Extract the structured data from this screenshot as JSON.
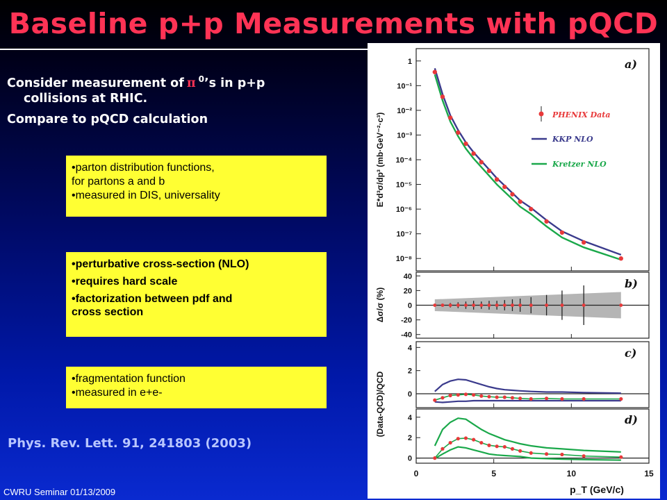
{
  "slide": {
    "title": "Baseline p+p Measurements with pQCD",
    "intro": {
      "line1_pre": "Consider measurement of",
      "pi_symbol": "π",
      "superscript": "0",
      "line1_post": "’s in p+p",
      "line2": "collisions at RHIC.",
      "line3": "Compare to pQCD calculation"
    },
    "box_pdf": {
      "item1a": "•parton distribution functions,",
      "item1b": "for partons a and b",
      "item2": "•measured in DIS, universality"
    },
    "box_xsec": {
      "item1": "•perturbative cross-section (NLO)",
      "item2": "•requires hard scale",
      "item3a": "•factorization between pdf and",
      "item3b": "cross section"
    },
    "box_frag": {
      "item1": "•fragmentation function",
      "item2": "•measured in e+e-"
    },
    "citation": "Phys. Rev. Lett. 91, 241803 (2003)",
    "footer": "CWRU Seminar 01/13/2009",
    "colors": {
      "title": "#ff3355",
      "box": "#ffff33",
      "citation": "#b8c6ff",
      "data": "#e8393a",
      "kkp": "#3a3a8c",
      "kretzer": "#1aa84a"
    }
  },
  "chart_data": [
    {
      "type": "scatter",
      "panel_label": "a)",
      "ylabel": "E*d³σ/dp³ (mb·GeV⁻²·c³)",
      "y_ticks": [
        "1",
        "10⁻¹",
        "10⁻²",
        "10⁻³",
        "10⁻⁴",
        "10⁻⁵",
        "10⁻⁶",
        "10⁻⁷",
        "10⁻⁸"
      ],
      "log_y": true,
      "ylim_exp": [
        -8.5,
        0.5
      ],
      "xlim": [
        0,
        15
      ],
      "legend": [
        "PHENIX Data",
        "KKP NLO",
        "Kretzer NLO"
      ],
      "legend_position": "top-right",
      "x": [
        1.2,
        1.7,
        2.2,
        2.7,
        3.2,
        3.7,
        4.2,
        4.7,
        5.2,
        5.7,
        6.2,
        6.7,
        7.4,
        8.4,
        9.4,
        10.8,
        13.2
      ],
      "series": [
        {
          "name": "PHENIX Data",
          "log10_values": [
            -0.45,
            -1.45,
            -2.3,
            -2.9,
            -3.35,
            -3.75,
            -4.1,
            -4.45,
            -4.8,
            -5.1,
            -5.4,
            -5.7,
            -6.0,
            -6.5,
            -6.95,
            -7.35,
            -8.0
          ]
        },
        {
          "name": "KKP NLO",
          "log10_values": [
            -0.3,
            -1.35,
            -2.2,
            -2.8,
            -3.3,
            -3.7,
            -4.05,
            -4.4,
            -4.75,
            -5.05,
            -5.35,
            -5.65,
            -5.95,
            -6.45,
            -6.9,
            -7.3,
            -7.85
          ]
        },
        {
          "name": "Kretzer NLO",
          "log10_values": [
            -0.55,
            -1.6,
            -2.45,
            -3.05,
            -3.55,
            -3.95,
            -4.3,
            -4.65,
            -5.0,
            -5.3,
            -5.6,
            -5.9,
            -6.2,
            -6.7,
            -7.15,
            -7.55,
            -8.05
          ]
        }
      ]
    },
    {
      "type": "scatter",
      "panel_label": "b)",
      "ylabel": "Δσ/σ (%)",
      "y_ticks": [
        "40",
        "20",
        "0",
        "-20",
        "-40"
      ],
      "ylim": [
        -45,
        45
      ],
      "x": [
        1.2,
        1.7,
        2.2,
        2.7,
        3.2,
        3.7,
        4.2,
        4.7,
        5.2,
        5.7,
        6.2,
        6.7,
        7.4,
        8.4,
        9.4,
        10.8,
        13.2
      ],
      "values": [
        0,
        0,
        0,
        0,
        0,
        0,
        0,
        0,
        0,
        0,
        0,
        0,
        0,
        0,
        0,
        0,
        0
      ],
      "errors": [
        2,
        2,
        3,
        4,
        5,
        6,
        5,
        6,
        6,
        7,
        8,
        9,
        11,
        14,
        20,
        27,
        0
      ]
    },
    {
      "type": "line",
      "panel_label": "c)",
      "ylabel": "(Data-QCD)/QCD",
      "y_ticks": [
        "4",
        "2",
        "0"
      ],
      "ylim": [
        -1.2,
        4.5
      ],
      "x": [
        1.2,
        1.7,
        2.2,
        2.7,
        3.2,
        3.7,
        4.2,
        4.7,
        5.2,
        5.7,
        6.2,
        6.7,
        7.4,
        8.4,
        9.4,
        10.8,
        13.2
      ],
      "series": [
        {
          "name": "PHENIX Data",
          "values": [
            -0.55,
            -0.35,
            -0.15,
            -0.1,
            -0.05,
            -0.1,
            -0.2,
            -0.25,
            -0.3,
            -0.3,
            -0.35,
            -0.4,
            -0.45,
            -0.4,
            -0.45,
            -0.45,
            -0.45
          ]
        },
        {
          "name": "KKP NLO",
          "values": [
            0.2,
            0.8,
            1.1,
            1.25,
            1.2,
            1.0,
            0.8,
            0.6,
            0.45,
            0.35,
            0.3,
            0.25,
            0.2,
            0.15,
            0.15,
            0.1,
            0.05
          ]
        },
        {
          "name": "KKP NLO",
          "values": [
            -0.7,
            -0.75,
            -0.7,
            -0.65,
            -0.65,
            -0.6,
            -0.6,
            -0.6,
            -0.6,
            -0.6,
            -0.6,
            -0.6,
            -0.6,
            -0.6,
            -0.6,
            -0.6,
            -0.6
          ]
        }
      ]
    },
    {
      "type": "line",
      "panel_label": "d)",
      "ylabel": "(Data-QCD)/QCD",
      "y_ticks": [
        "4",
        "2",
        "0"
      ],
      "ylim": [
        -0.5,
        4.8
      ],
      "xlabel": "p_T (GeV/c)",
      "x_ticks": [
        "0",
        "5",
        "10",
        "15"
      ],
      "x": [
        1.2,
        1.7,
        2.2,
        2.7,
        3.2,
        3.7,
        4.2,
        4.7,
        5.2,
        5.7,
        6.2,
        6.7,
        7.4,
        8.4,
        9.4,
        10.8,
        13.2
      ],
      "series": [
        {
          "name": "PHENIX Data",
          "values": [
            0.0,
            0.9,
            1.5,
            1.9,
            1.95,
            1.8,
            1.5,
            1.25,
            1.15,
            1.1,
            0.9,
            0.7,
            0.5,
            0.4,
            0.35,
            0.2,
            0.1
          ]
        },
        {
          "name": "Kretzer NLO",
          "values": [
            1.2,
            2.8,
            3.5,
            3.9,
            3.8,
            3.3,
            2.8,
            2.4,
            2.1,
            1.8,
            1.6,
            1.4,
            1.2,
            1.0,
            0.9,
            0.75,
            0.6
          ]
        },
        {
          "name": "Kretzer NLO",
          "values": [
            -0.05,
            0.4,
            0.8,
            1.1,
            1.0,
            0.8,
            0.6,
            0.4,
            0.3,
            0.25,
            0.2,
            0.15,
            0.0,
            -0.05,
            -0.1,
            -0.15,
            -0.2
          ]
        }
      ]
    }
  ]
}
